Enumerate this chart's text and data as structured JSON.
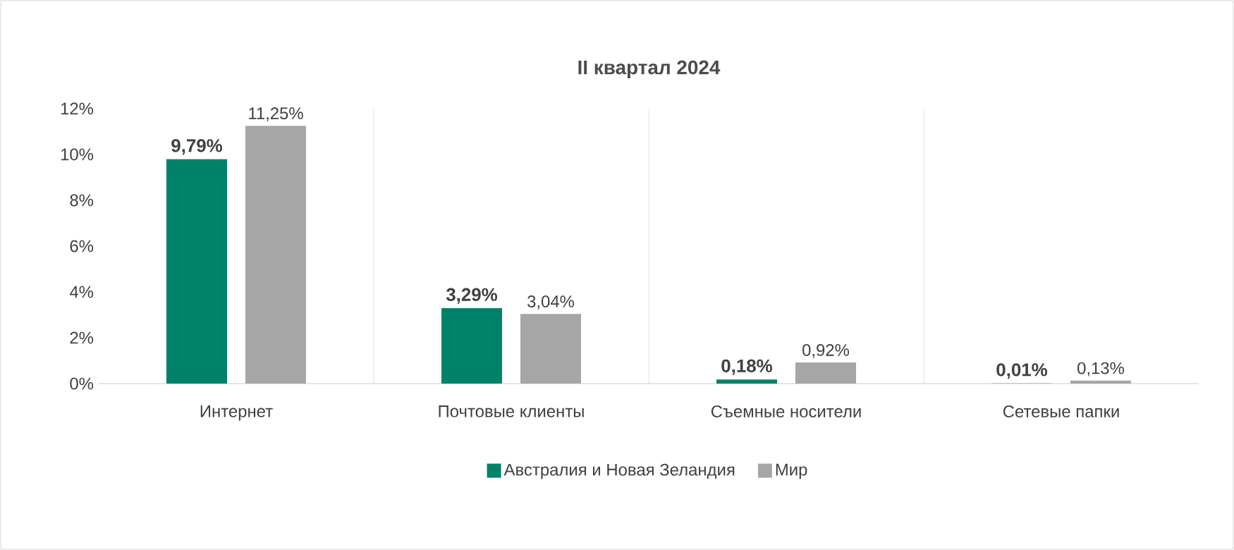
{
  "chart_data": {
    "type": "bar",
    "title": "II квартал 2024",
    "categories": [
      "Интернет",
      "Почтовые клиенты",
      "Съемные носители",
      "Сетевые папки"
    ],
    "series": [
      {
        "name": "Австралия и Новая Зеландия",
        "color": "#008269",
        "values": [
          9.79,
          3.29,
          0.18,
          0.01
        ],
        "value_labels": [
          "9,79%",
          "3,29%",
          "0,18%",
          "0,01%"
        ]
      },
      {
        "name": "Мир",
        "color": "#a6a6a6",
        "values": [
          11.25,
          3.04,
          0.92,
          0.13
        ],
        "value_labels": [
          "11,25%",
          "3,04%",
          "0,92%",
          "0,13%"
        ]
      }
    ],
    "ylim": [
      0,
      12
    ],
    "yticks": [
      {
        "value": 0,
        "label": "0%"
      },
      {
        "value": 2,
        "label": "2%"
      },
      {
        "value": 4,
        "label": "4%"
      },
      {
        "value": 6,
        "label": "6%"
      },
      {
        "value": 8,
        "label": "8%"
      },
      {
        "value": 10,
        "label": "10%"
      },
      {
        "value": 12,
        "label": "12%"
      }
    ],
    "grid": "x",
    "legend": "bottom"
  }
}
